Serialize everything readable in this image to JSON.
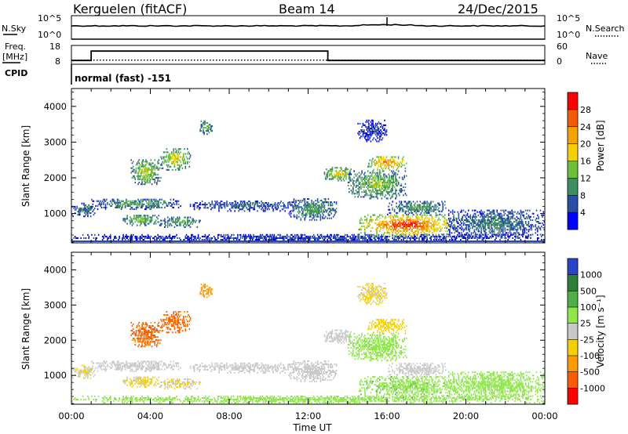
{
  "header": {
    "station": "Kerguelen (fitACF)",
    "beam": "Beam 14",
    "date": "24/Dec/2015"
  },
  "top_panel": {
    "left_label": "N.Sky",
    "left_ticks": [
      "10^5",
      "10^0"
    ],
    "right_label": "N.Search",
    "right_ticks": [
      "10^5",
      "10^0"
    ]
  },
  "freq_panel": {
    "left_label_1": "Freq.",
    "left_label_2": "[MHz]",
    "left_ticks": [
      "18",
      "8"
    ],
    "right_label": "Nave",
    "right_ticks": [
      "60",
      "0"
    ],
    "cpid_label": "CPID",
    "mode_text": "normal (fast) -151"
  },
  "power_panel": {
    "ylabel": "Slant Range [km]",
    "yticks": [
      "4000",
      "3000",
      "2000",
      "1000"
    ],
    "colorbar_label": "Power [dB]",
    "colorbar_ticks": [
      "28",
      "24",
      "20",
      "16",
      "12",
      "8",
      "4"
    ],
    "colors": [
      "#0000ff",
      "#2a4ea8",
      "#3e8f5f",
      "#6cc03a",
      "#f5d000",
      "#f5a300",
      "#f55a00",
      "#ff0000"
    ]
  },
  "velocity_panel": {
    "ylabel": "Slant Range [km]",
    "yticks": [
      "4000",
      "3000",
      "2000",
      "1000"
    ],
    "colorbar_label": "Velocity [m s⁻¹]",
    "colorbar_ticks": [
      "1000",
      "500",
      "100",
      "25",
      "-25",
      "-100",
      "-500",
      "-1000"
    ],
    "colors": [
      "#2a45c8",
      "#2f7f3a",
      "#4fb046",
      "#8fe84a",
      "#c8c8c8",
      "#f5d000",
      "#ff9a00",
      "#ff5a00",
      "#ff0000"
    ]
  },
  "xaxis": {
    "ticks": [
      "00:00",
      "04:00",
      "08:00",
      "12:00",
      "16:00",
      "20:00",
      "00:00"
    ],
    "label": "Time UT"
  },
  "chart_data": {
    "type": "heatmap",
    "x_range_hours": [
      0,
      24
    ],
    "y_range_km": [
      180,
      4500
    ],
    "frequency_mhz": [
      {
        "start": 0.0,
        "end": 1.0,
        "value": 10
      },
      {
        "start": 1.0,
        "end": 13.0,
        "value": 15
      },
      {
        "start": 13.0,
        "end": 24.0,
        "value": 10
      }
    ],
    "nave_dotted": 13,
    "echo_regions": [
      {
        "t0": 0.0,
        "t1": 24.0,
        "r0": 200,
        "r1": 400,
        "power": 6,
        "velocity": 40
      },
      {
        "t0": 0.0,
        "t1": 1.2,
        "r0": 900,
        "r1": 1300,
        "power": 10,
        "velocity": -20
      },
      {
        "t0": 1.0,
        "t1": 5.5,
        "r0": 1100,
        "r1": 1400,
        "power": 12,
        "velocity": 10
      },
      {
        "t0": 2.5,
        "t1": 4.5,
        "r0": 650,
        "r1": 950,
        "power": 16,
        "velocity": -30
      },
      {
        "t0": 4.5,
        "t1": 6.5,
        "r0": 600,
        "r1": 900,
        "power": 14,
        "velocity": -20
      },
      {
        "t0": 6.0,
        "t1": 11.5,
        "r0": 1050,
        "r1": 1350,
        "power": 8,
        "velocity": 10
      },
      {
        "t0": 3.0,
        "t1": 4.5,
        "r0": 1800,
        "r1": 2500,
        "power": 18,
        "velocity": -600
      },
      {
        "t0": 4.5,
        "t1": 6.0,
        "r0": 2200,
        "r1": 2800,
        "power": 20,
        "velocity": -600
      },
      {
        "t0": 6.5,
        "t1": 7.1,
        "r0": 3200,
        "r1": 3600,
        "power": 14,
        "velocity": -300
      },
      {
        "t0": 11.0,
        "t1": 13.5,
        "r0": 800,
        "r1": 1400,
        "power": 12,
        "velocity": 10
      },
      {
        "t0": 12.8,
        "t1": 14.2,
        "r0": 1900,
        "r1": 2300,
        "power": 20,
        "velocity": 10
      },
      {
        "t0": 14.0,
        "t1": 17.0,
        "r0": 1400,
        "r1": 2200,
        "power": 16,
        "velocity": 60
      },
      {
        "t0": 15.0,
        "t1": 17.0,
        "r0": 2200,
        "r1": 2600,
        "power": 26,
        "velocity": -40
      },
      {
        "t0": 14.5,
        "t1": 19.5,
        "r0": 350,
        "r1": 950,
        "power": 30,
        "velocity": 80
      },
      {
        "t0": 16.0,
        "t1": 19.0,
        "r0": 950,
        "r1": 1350,
        "power": 12,
        "velocity": 10
      },
      {
        "t0": 19.0,
        "t1": 24.0,
        "r0": 300,
        "r1": 1100,
        "power": 10,
        "velocity": 40
      },
      {
        "t0": 14.5,
        "t1": 16.0,
        "r0": 3000,
        "r1": 3600,
        "power": 6,
        "velocity": -30
      }
    ]
  }
}
